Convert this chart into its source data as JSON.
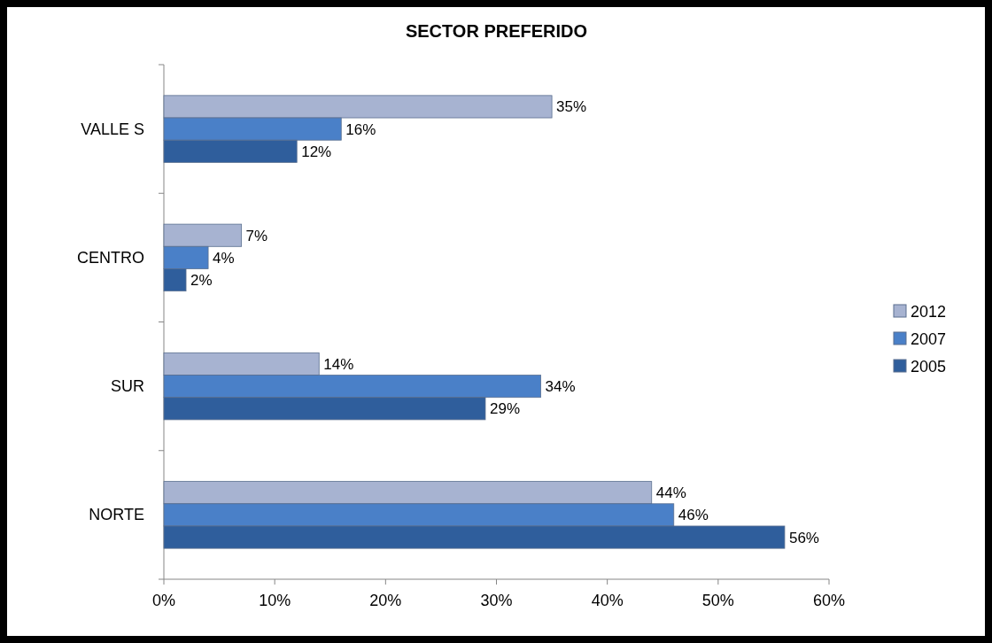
{
  "chart_data": {
    "type": "bar",
    "orientation": "horizontal",
    "title": "SECTOR PREFERIDO",
    "categories": [
      "VALLE S",
      "CENTRO",
      "SUR",
      "NORTE"
    ],
    "series": [
      {
        "name": "2012",
        "color": "#a7b3d1",
        "values": [
          35,
          7,
          14,
          44
        ],
        "value_labels": [
          "35%",
          "7%",
          "14%",
          "44%"
        ]
      },
      {
        "name": "2007",
        "color": "#4a80c8",
        "values": [
          16,
          4,
          34,
          46
        ],
        "value_labels": [
          "16%",
          "4%",
          "34%",
          "46%"
        ]
      },
      {
        "name": "2005",
        "color": "#2f5e9c",
        "values": [
          12,
          2,
          29,
          56
        ],
        "value_labels": [
          "12%",
          "2%",
          "29%",
          "56%"
        ]
      }
    ],
    "xlim": [
      0,
      60
    ],
    "xticks": [
      {
        "value": 0,
        "label": "0%"
      },
      {
        "value": 10,
        "label": "10%"
      },
      {
        "value": 20,
        "label": "20%"
      },
      {
        "value": 30,
        "label": "30%"
      },
      {
        "value": 40,
        "label": "40%"
      },
      {
        "value": 50,
        "label": "50%"
      },
      {
        "value": 60,
        "label": "60%"
      }
    ],
    "legend": "right"
  }
}
